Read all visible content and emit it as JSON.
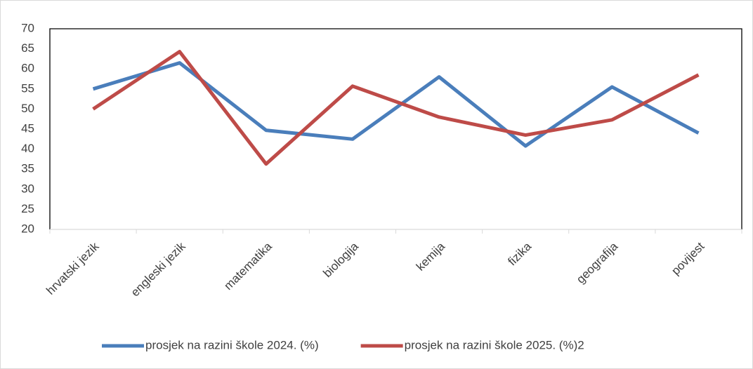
{
  "chart_data": {
    "type": "line",
    "categories": [
      "hrvatski jezik",
      "engleski jezik",
      "matematika",
      "biologija",
      "kemija",
      "fizika",
      "geografija",
      "povijest"
    ],
    "series": [
      {
        "name": "prosjek na razini škole 2024. (%)",
        "color": "#4a7ebb",
        "values": [
          55,
          61.5,
          44.7,
          42.5,
          58,
          40.8,
          55.5,
          44
        ]
      },
      {
        "name": "prosjek na razini škole 2025. (%)2",
        "color": "#be4b48",
        "values": [
          50,
          64.3,
          36.3,
          55.7,
          48,
          43.5,
          47.3,
          58.5
        ]
      }
    ],
    "ylim": [
      20,
      70
    ],
    "yticks": [
      20,
      25,
      30,
      35,
      40,
      45,
      50,
      55,
      60,
      65,
      70
    ],
    "grid": false,
    "legend": "bottom"
  }
}
